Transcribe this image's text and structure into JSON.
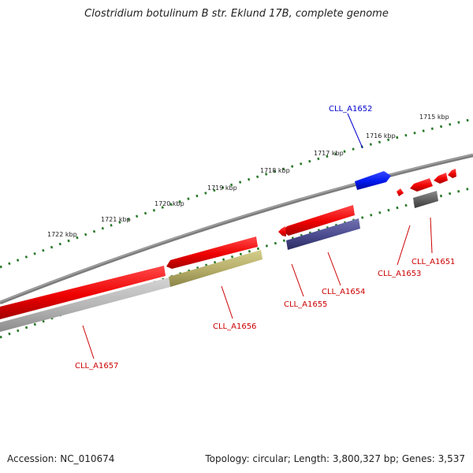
{
  "title": "Clostridium botulinum B str. Eklund 17B, complete genome",
  "footer": {
    "accession": "Accession: NC_010674",
    "summary": "Topology: circular; Length: 3,800,327 bp; Genes: 3,537"
  },
  "ticks": [
    "1715 kbp",
    "1716 kbp",
    "1717 kbp",
    "1718 kbp",
    "1719 kbp",
    "1720 kbp",
    "1721 kbp",
    "1722 kbp"
  ],
  "genes": [
    {
      "id": "CLL_A1651",
      "color": "#cc0000"
    },
    {
      "id": "CLL_A1652",
      "color": "#0000cc"
    },
    {
      "id": "CLL_A1653",
      "color": "#cc0000"
    },
    {
      "id": "CLL_A1654",
      "color": "#cc0000"
    },
    {
      "id": "CLL_A1655",
      "color": "#cc0000"
    },
    {
      "id": "CLL_A1656",
      "color": "#cc0000"
    },
    {
      "id": "CLL_A1657",
      "color": "#cc0000"
    }
  ],
  "colors": {
    "backbone": "#808080",
    "gene_red": "#ee1111",
    "gene_blue": "#1122ee",
    "cds_purple": "#4a4a90",
    "cds_olive": "#b8b070",
    "cds_grey": "#b8b8b8",
    "cds_dark": "#666666",
    "tick_green": "#2a7a2a"
  }
}
